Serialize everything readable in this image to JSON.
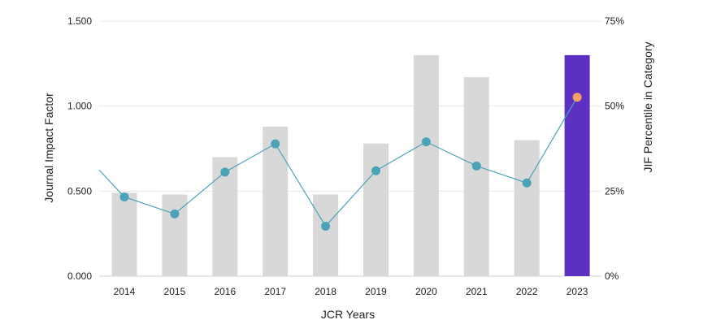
{
  "chart_data": {
    "type": "bar",
    "xlabel": "JCR Years",
    "ylabel": "Journal Impact Factor",
    "y2label": "JIF Percentile in Category",
    "categories": [
      "2014",
      "2015",
      "2016",
      "2017",
      "2018",
      "2019",
      "2020",
      "2021",
      "2022",
      "2023"
    ],
    "ylim": [
      0,
      1.5
    ],
    "y_ticks": [
      "0.000",
      "0.500",
      "1.000",
      "1.500"
    ],
    "y2lim": [
      0,
      75
    ],
    "y2_ticks": [
      "0%",
      "25%",
      "50%",
      "75%"
    ],
    "grid": true,
    "series": [
      {
        "type": "bar",
        "axis": "left",
        "values": [
          0.49,
          0.48,
          0.7,
          0.88,
          0.48,
          0.78,
          1.3,
          1.17,
          0.8,
          1.3
        ],
        "color": "#d8d8d8",
        "highlight_color": "#5c30c0",
        "highlight_index": 9
      },
      {
        "type": "line",
        "axis": "right",
        "values": [
          23.3,
          18.3,
          30.6,
          38.9,
          14.7,
          31.0,
          39.5,
          32.4,
          27.4,
          52.6
        ],
        "leading_value": 31.2,
        "color": "#4ba3b8",
        "highlight_color": "#f2a06a",
        "highlight_index": 9
      }
    ]
  }
}
